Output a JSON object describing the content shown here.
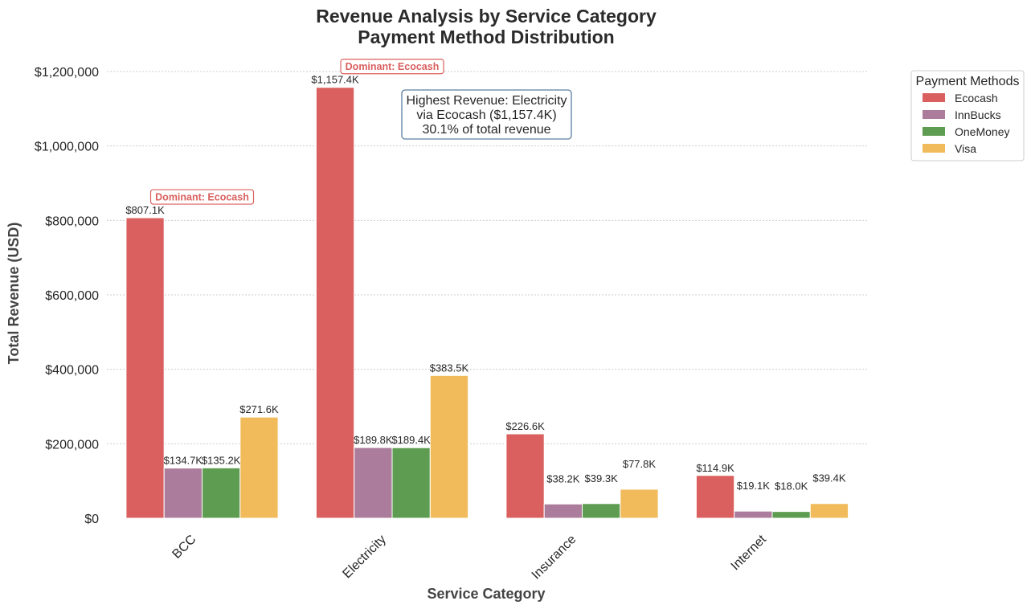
{
  "chart_data": {
    "type": "bar",
    "title_line1": "Revenue Analysis by Service Category",
    "title_line2": "Payment Method Distribution",
    "xlabel": "Service Category",
    "ylabel": "Total Revenue (USD)",
    "ylim": [
      0,
      1200000
    ],
    "yticks": [
      0,
      200000,
      400000,
      600000,
      800000,
      1000000,
      1200000
    ],
    "ytick_labels": [
      "$0",
      "$200,000",
      "$400,000",
      "$600,000",
      "$800,000",
      "$1,000,000",
      "$1,200,000"
    ],
    "categories": [
      "BCC",
      "Electricity",
      "Insurance",
      "Internet"
    ],
    "series": [
      {
        "name": "Ecocash",
        "color": "#d9605f",
        "values": [
          807100,
          1157400,
          226600,
          114900
        ],
        "labels": [
          "$807.1K",
          "$1,157.4K",
          "$226.6K",
          "$114.9K"
        ]
      },
      {
        "name": "InnBucks",
        "color": "#ab7c9b",
        "values": [
          134700,
          189800,
          38200,
          19100
        ],
        "labels": [
          "$134.7K",
          "$189.8K",
          "$38.2K",
          "$19.1K"
        ]
      },
      {
        "name": "OneMoney",
        "color": "#5d9c51",
        "values": [
          135200,
          189400,
          39300,
          18000
        ],
        "labels": [
          "$135.2K",
          "$189.4K",
          "$39.3K",
          "$18.0K"
        ]
      },
      {
        "name": "Visa",
        "color": "#f1bb5c",
        "values": [
          271600,
          383500,
          77800,
          39400
        ],
        "labels": [
          "$271.6K",
          "$383.5K",
          "$77.8K",
          "$39.4K"
        ]
      }
    ],
    "dominant_annotations": [
      {
        "category": "BCC",
        "text": "Dominant: Ecocash",
        "color": "#d9605f"
      },
      {
        "category": "Electricity",
        "text": "Dominant: Ecocash",
        "color": "#d9605f"
      }
    ],
    "highlight_box": {
      "lines": [
        "Highest Revenue: Electricity",
        "via Ecocash ($1,157.4K)",
        "30.1% of total revenue"
      ],
      "border_color": "#5b7fa0"
    },
    "legend": {
      "title": "Payment Methods",
      "position": "upper right, outside plot"
    },
    "grid": "horizontal dotted"
  }
}
